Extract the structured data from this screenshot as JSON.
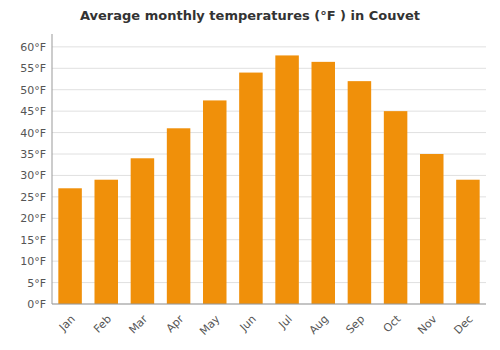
{
  "chart_data": {
    "type": "bar",
    "title": "Average monthly temperatures (°F ) in Couvet",
    "categories": [
      "Jan",
      "Feb",
      "Mar",
      "Apr",
      "May",
      "Jun",
      "Jul",
      "Aug",
      "Sep",
      "Oct",
      "Nov",
      "Dec"
    ],
    "values": [
      27,
      29,
      34,
      41,
      47.5,
      54,
      58,
      56.5,
      52,
      45,
      35,
      29
    ],
    "color": "#F0900A",
    "ylim": [
      0,
      63
    ],
    "yticks": [
      {
        "value": 0,
        "label": "0°F"
      },
      {
        "value": 5,
        "label": "5°F"
      },
      {
        "value": 10,
        "label": "10°F"
      },
      {
        "value": 15,
        "label": "15°F"
      },
      {
        "value": 20,
        "label": "20°F"
      },
      {
        "value": 25,
        "label": "25°F"
      },
      {
        "value": 30,
        "label": "30°F"
      },
      {
        "value": 35,
        "label": "35°F"
      },
      {
        "value": 40,
        "label": "40°F"
      },
      {
        "value": 45,
        "label": "45°F"
      },
      {
        "value": 50,
        "label": "50°F"
      },
      {
        "value": 55,
        "label": "55°F"
      },
      {
        "value": 60,
        "label": "60°F"
      }
    ],
    "grid": true
  }
}
